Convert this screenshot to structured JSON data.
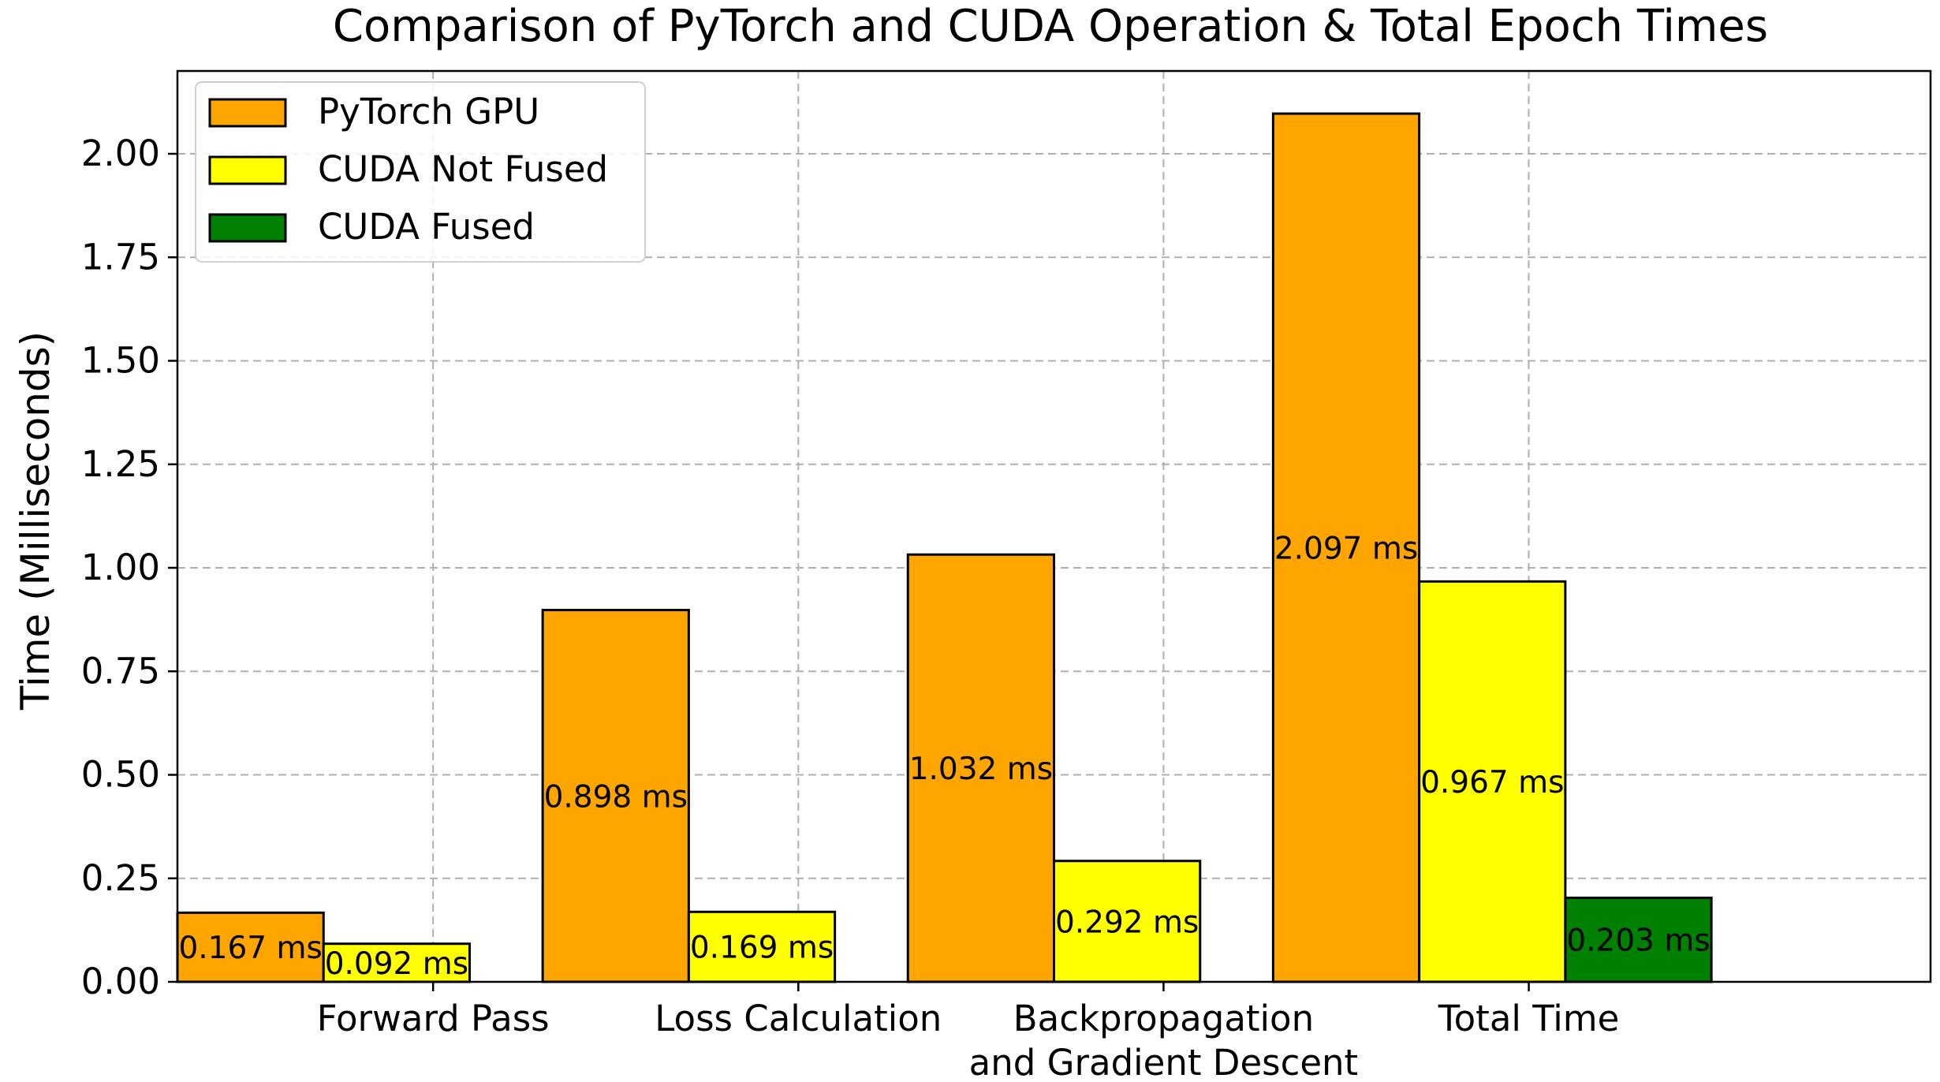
{
  "chart_data": {
    "type": "bar",
    "title": "Comparison of PyTorch and CUDA Operation & Total Epoch Times",
    "xlabel": "",
    "ylabel": "Time (Milliseconds)",
    "ylim": [
      0,
      2.2
    ],
    "yticks": [
      "0.00",
      "0.25",
      "0.50",
      "0.75",
      "1.00",
      "1.25",
      "1.50",
      "1.75",
      "2.00"
    ],
    "grid": true,
    "legend_position": "top-left",
    "categories": [
      [
        "Forward Pass"
      ],
      [
        "Loss Calculation"
      ],
      [
        "Backpropagation",
        "and Gradient Descent"
      ],
      [
        "Total Time"
      ]
    ],
    "series": [
      {
        "name": "PyTorch GPU",
        "color": "#FFA500",
        "values": [
          0.167,
          0.898,
          1.032,
          2.097
        ],
        "labels": [
          "0.167 ms",
          "0.898 ms",
          "1.032 ms",
          "2.097 ms"
        ]
      },
      {
        "name": "CUDA Not Fused",
        "color": "#FFFF00",
        "values": [
          0.092,
          0.169,
          0.292,
          0.967
        ],
        "labels": [
          "0.092 ms",
          "0.169 ms",
          "0.292 ms",
          "0.967 ms"
        ]
      },
      {
        "name": "CUDA Fused",
        "color": "#008000",
        "values": [
          null,
          null,
          null,
          0.203
        ],
        "labels": [
          null,
          null,
          null,
          "0.203 ms"
        ]
      }
    ]
  }
}
